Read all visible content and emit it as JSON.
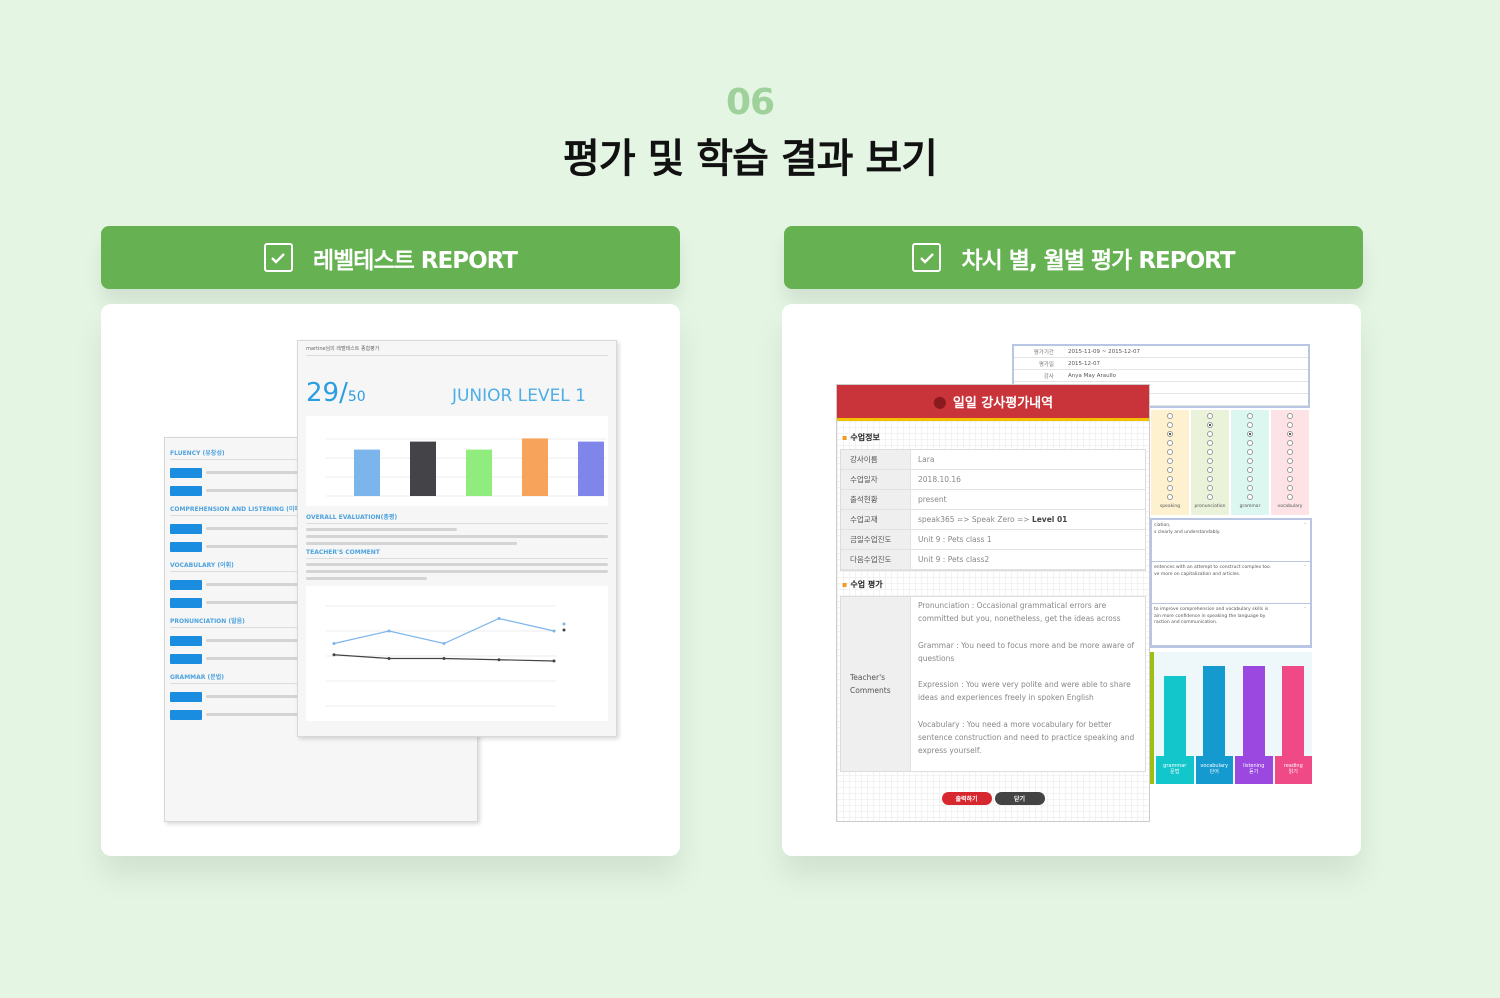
{
  "section": {
    "number": "06",
    "title": "평가 및 학습 결과 보기"
  },
  "left": {
    "header": "레벨테스트 REPORT",
    "icon": "checkbox-icon",
    "report": {
      "header_name": "martine님의 레벨테스트 종합평가",
      "score": "29/",
      "score_total": "50",
      "level": "JUNIOR LEVEL 1",
      "bar_chart": {
        "values": [
          5.8,
          6.8,
          5.8,
          7.2,
          6.8
        ],
        "colors": [
          "#7cb5ec",
          "#434348",
          "#90ed7d",
          "#f7a35c",
          "#8085e9"
        ]
      },
      "sections": [
        "OVERALL EVALUATION(총평)",
        "TEACHER'S COMMENT"
      ],
      "line_chart": {
        "series": [
          {
            "values": [
              5,
              6,
              5,
              7,
              6
            ],
            "color": "#7cb5ec"
          },
          {
            "values": [
              4.1,
              3.8,
              3.8,
              3.7,
              3.6
            ],
            "color": "#434348"
          }
        ]
      },
      "back_sections": [
        "FLUENCY (유창성)",
        "COMPREHENSION AND LISTENING (이해력과 듣기)",
        "VOCABULARY (어휘)",
        "PRONUNCIATION (발음)",
        "GRAMMAR (문법)"
      ]
    }
  },
  "right": {
    "header": "차시 별, 월별 평가 REPORT",
    "icon": "checkbox-icon",
    "back": {
      "rows": [
        {
          "k": "평가기간",
          "v": "2015-11-09 ~ 2015-12-07"
        },
        {
          "k": "평가일",
          "v": "2015-12-07"
        },
        {
          "k": "강사",
          "v": "Anya May Araullo"
        }
      ],
      "radio_cols": [
        {
          "label": "speaking",
          "bg": "#fdf1cf",
          "sel": 2
        },
        {
          "label": "pronunciation",
          "bg": "#eaf3da",
          "sel": 1
        },
        {
          "label": "grammar",
          "bg": "#dcf7ef",
          "sel": 2
        },
        {
          "label": "vocabulary",
          "bg": "#fde3e6",
          "sel": 2
        }
      ],
      "comments": [
        [
          "ciation,",
          "s clearly and understandably."
        ],
        [
          "entences with an attempt to construct complex too.",
          "ve more on capitalization and articles."
        ],
        [
          "to improve comprehension and vocabulary skills is",
          "ain more confidence in speaking the language by",
          "raction and communication."
        ]
      ],
      "bars": [
        {
          "en": "grammar",
          "ko": "문법",
          "color": "#13c6cc",
          "level": 0.8
        },
        {
          "en": "vocabulary",
          "ko": "단어",
          "color": "#159ad0",
          "level": 0.9
        },
        {
          "en": "listening",
          "ko": "듣기",
          "color": "#9b48e0",
          "level": 0.9
        },
        {
          "en": "reading",
          "ko": "읽기",
          "color": "#ef4a86",
          "level": 0.9
        }
      ]
    },
    "front": {
      "title": "일일 강사평가내역",
      "info_heading": "수업정보",
      "info": [
        {
          "k": "강사이름",
          "v": "Lara"
        },
        {
          "k": "수업일자",
          "v": "2018.10.16"
        },
        {
          "k": "출석현황",
          "v": "present"
        },
        {
          "k": "수업교재",
          "v": "speak365 => Speak Zero => ",
          "b": "Level 01"
        },
        {
          "k": "금일수업진도",
          "v": "Unit 9 : Pets class 1"
        },
        {
          "k": "다음수업진도",
          "v": "Unit 9 : Pets class2"
        }
      ],
      "eval_heading": "수업 평가",
      "comments_label": "Teacher's Comments",
      "comments": [
        "Pronunciation : Occasional grammatical errors are committed but you, nonetheless, get the ideas across",
        "Grammar : You need to focus more and be more aware of questions",
        "Expression : You were very polite and were able to share ideas and experiences freely in spoken English",
        "Vocabulary : You need a more vocabulary for better sentence construction and need to practice speaking and express yourself."
      ],
      "print_button": "출력하기",
      "close_button": "닫기"
    }
  }
}
